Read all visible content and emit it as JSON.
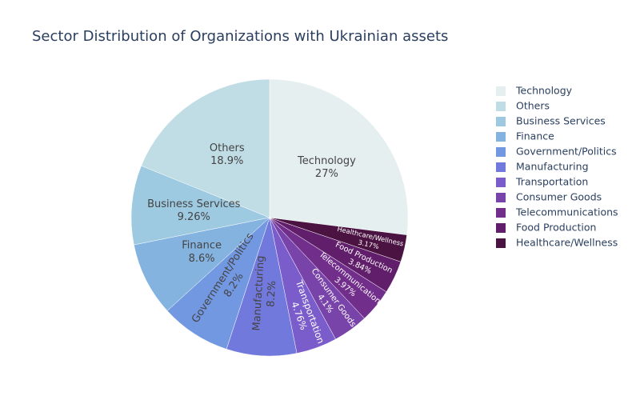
{
  "chart_data": {
    "type": "pie",
    "title": "Sector Distribution of Organizations with Ukrainian assets",
    "categories": [
      "Technology",
      "Others",
      "Business Services",
      "Finance",
      "Government/Politics",
      "Manufacturing",
      "Transportation",
      "Consumer Goods",
      "Telecommunications",
      "Food Production",
      "Healthcare/Wellness"
    ],
    "values": [
      27,
      18.9,
      9.26,
      8.6,
      8.2,
      8.2,
      4.76,
      4.1,
      3.97,
      3.84,
      3.17
    ],
    "value_labels": [
      "27%",
      "18.9%",
      "9.26%",
      "8.6%",
      "8.2%",
      "8.2%",
      "4.76%",
      "4.1%",
      "3.97%",
      "3.84%",
      "3.17%"
    ],
    "colors": [
      "#e5eff0",
      "#c0dde5",
      "#9dc9e1",
      "#84b3e0",
      "#7398e2",
      "#7279dc",
      "#7a5cca",
      "#7944a9",
      "#712e8b",
      "#611e6b",
      "#4a1342"
    ],
    "legend": "right"
  }
}
